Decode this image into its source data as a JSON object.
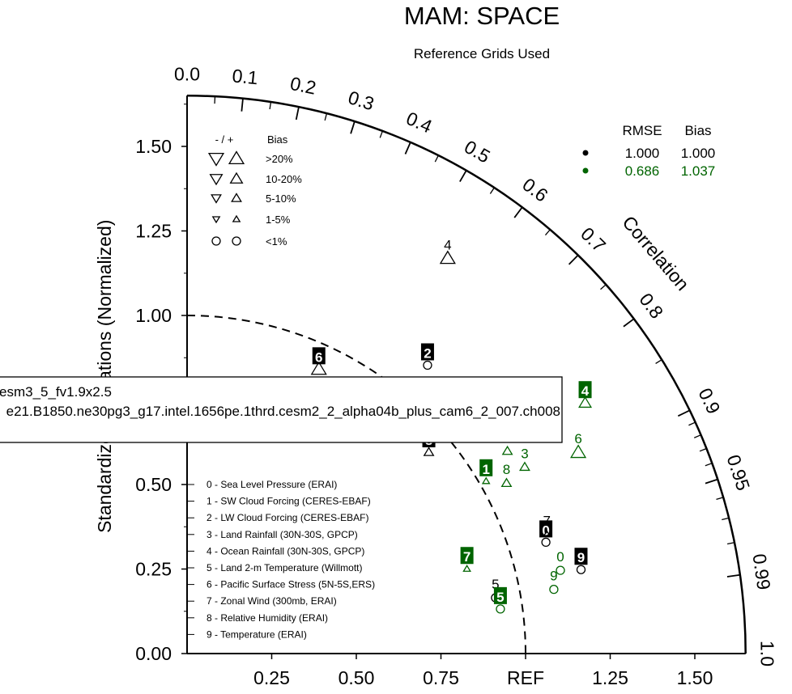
{
  "chart_data": {
    "type": "scatter",
    "title": "MAM: SPACE",
    "subtitle": "Reference Grids Used",
    "ylabel": "Standardized Deviations (Normalized)",
    "arc_label": "Correlation",
    "ref_label": "REF",
    "ylim": [
      0,
      1.65
    ],
    "x_ticks": [
      "0.25",
      "0.50",
      "0.75",
      "1.25",
      "1.50"
    ],
    "y_ticks": [
      "0.00",
      "0.25",
      "0.50",
      "0.75",
      "1.00",
      "1.25",
      "1.50"
    ],
    "corr_ticks": [
      "0.0",
      "0.1",
      "0.2",
      "0.3",
      "0.4",
      "0.5",
      "0.6",
      "0.7",
      "0.8",
      "0.9",
      "0.95",
      "0.99",
      "1.0"
    ],
    "series": [
      {
        "name": "esm3_5_fv1.9x2.5",
        "color": "#000000",
        "rmse": "1.000",
        "bias": "1.000",
        "points": [
          {
            "id": "0",
            "std": 1.11,
            "corr": 0.955,
            "bias": "<1%",
            "boxed": true
          },
          {
            "id": "1",
            "std": 0.9,
            "corr": 0.7,
            "bias": "1-5%+",
            "boxed": false
          },
          {
            "id": "2",
            "std": 1.11,
            "corr": 0.64,
            "bias": "<1%",
            "boxed": true
          },
          {
            "id": "3",
            "std": 0.96,
            "corr": 0.748,
            "bias": "<1%",
            "boxed": true
          },
          {
            "id": "4",
            "std": 1.4,
            "corr": 0.55,
            "bias": ">20%+",
            "boxed": false
          },
          {
            "id": "5",
            "std": 0.926,
            "corr": 0.984,
            "bias": "<1%",
            "boxed": false
          },
          {
            "id": "6",
            "std": 0.927,
            "corr": 0.42,
            "bias": ">20%+",
            "boxed": true
          },
          {
            "id": "7",
            "std": 1.12,
            "corr": 0.949,
            "bias": "1-5%+",
            "boxed": false
          },
          {
            "id": "8",
            "std": 0.93,
            "corr": 0.768,
            "bias": "5-10%+",
            "boxed": true
          },
          {
            "id": "9",
            "std": 1.19,
            "corr": 0.978,
            "bias": "<1%",
            "boxed": true
          }
        ]
      },
      {
        "name": "e21.B1850.ne30pg3_g17.intel.1656pe.1thrd.cesm2_2_alpha04b_plus_cam6_2_007.ch008",
        "color": "#006400",
        "rmse": "0.686",
        "bias": "1.037",
        "points": [
          {
            "id": "0",
            "std": 1.13,
            "corr": 0.976,
            "bias": "<1%",
            "boxed": false
          },
          {
            "id": "1",
            "std": 1.02,
            "corr": 0.866,
            "bias": "1-5%+",
            "boxed": true
          },
          {
            "id": "2",
            "std": 1.12,
            "corr": 0.845,
            "bias": "5-10%+",
            "boxed": false
          },
          {
            "id": "3",
            "std": 1.14,
            "corr": 0.875,
            "bias": "5-10%+",
            "boxed": false
          },
          {
            "id": "4",
            "std": 1.39,
            "corr": 0.846,
            "bias": "10-20%+",
            "boxed": true
          },
          {
            "id": "5",
            "std": 0.935,
            "corr": 0.99,
            "bias": "<1%",
            "boxed": true
          },
          {
            "id": "6",
            "std": 1.3,
            "corr": 0.889,
            "bias": ">20%+",
            "boxed": false
          },
          {
            "id": "7",
            "std": 0.864,
            "corr": 0.957,
            "bias": "1-5%+",
            "boxed": true
          },
          {
            "id": "8",
            "std": 1.07,
            "corr": 0.882,
            "bias": "5-10%+",
            "boxed": false
          },
          {
            "id": "9",
            "std": 1.1,
            "corr": 0.985,
            "bias": "<1%",
            "boxed": false
          }
        ]
      }
    ],
    "bias_legend": {
      "header_minus_plus": "- / +",
      "header_bias": "Bias",
      "rows": [
        ">20%",
        "10-20%",
        "5-10%",
        "1-5%",
        "<1%"
      ]
    },
    "stats_legend": {
      "header_rmse": "RMSE",
      "header_bias": "Bias"
    },
    "variables": [
      "0 - Sea Level Pressure (ERAI)",
      "1 - SW Cloud Forcing (CERES-EBAF)",
      "2 - LW Cloud Forcing (CERES-EBAF)",
      "3 - Land Rainfall (30N-30S, GPCP)",
      "4 - Ocean Rainfall (30N-30S, GPCP)",
      "5 - Land 2-m Temperature (Willmott)",
      "6 - Pacific Surface Stress (5N-5S,ERS)",
      "7 - Zonal Wind (300mb, ERAI)",
      "8 - Relative Humidity (ERAI)",
      "9 - Temperature (ERAI)"
    ]
  }
}
